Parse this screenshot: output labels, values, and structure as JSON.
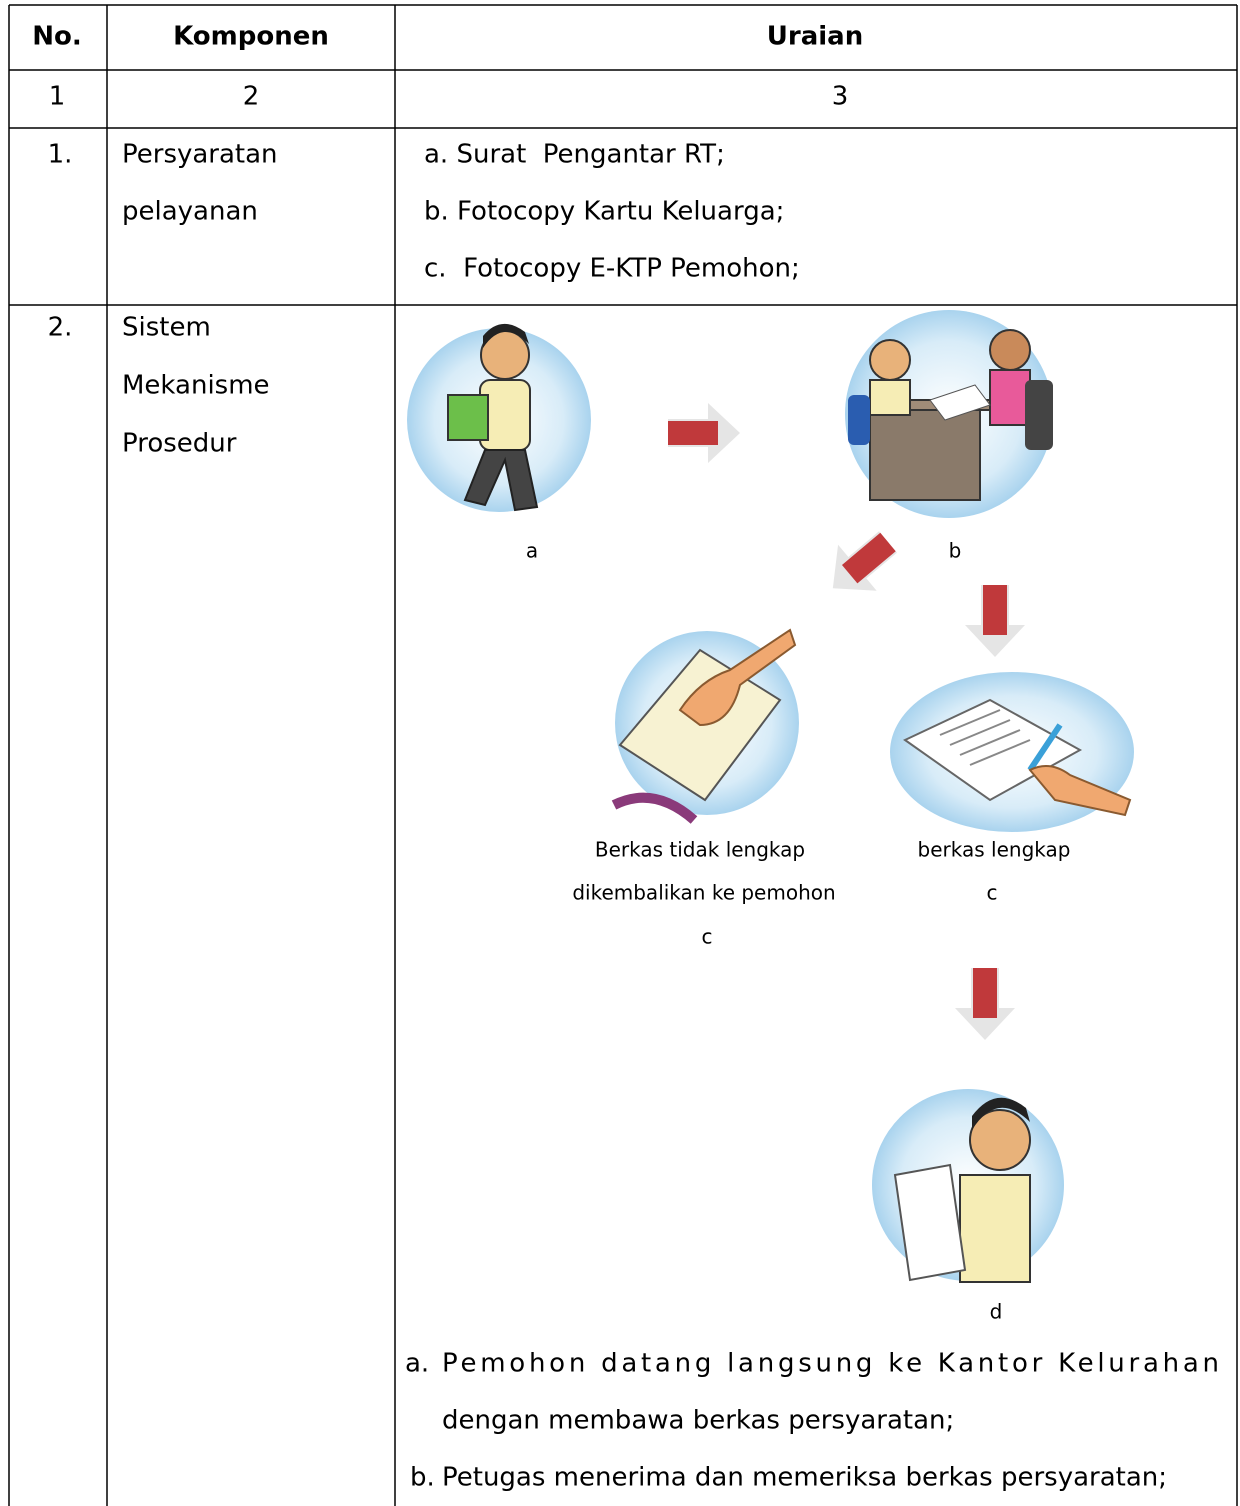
{
  "table": {
    "header": [
      "No.",
      "Komponen",
      "Uraian"
    ],
    "numbering": [
      "1",
      "2",
      "3"
    ],
    "rows": [
      {
        "no": "1.",
        "component": [
          "Persyaratan",
          "pelayanan"
        ],
        "items": [
          "a. Surat  Pengantar RT;",
          "b. Fotocopy Kartu Keluarga;",
          "c.  Fotocopy E-KTP Pemohon;"
        ]
      },
      {
        "no": "2.",
        "component": [
          "Sistem",
          "Mekanisme",
          "Prosedur"
        ],
        "flow": [
          {
            "label": [
              "a"
            ]
          },
          {
            "label": [
              "b"
            ]
          },
          {
            "label": [
              "Berkas tidak lengkap",
              "dikembalikan ke pemohon",
              "c"
            ]
          },
          {
            "label": [
              "berkas lengkap",
              "c"
            ]
          },
          {
            "label": [
              "d"
            ]
          }
        ],
        "items": [
          {
            "marker": "a.",
            "lines": [
              "Pemohon datang langsung ke Kantor Kelurahan",
              "dengan membawa berkas persyaratan;"
            ]
          },
          {
            "marker": "b.",
            "lines": [
              "Petugas menerima dan memeriksa berkas persyaratan;"
            ]
          }
        ]
      }
    ]
  }
}
